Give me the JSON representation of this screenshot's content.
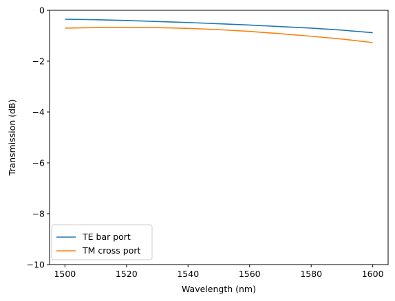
{
  "chart_data": {
    "type": "line",
    "xlabel": "Wavelength (nm)",
    "ylabel": "Transmission (dB)",
    "xlim": [
      1495,
      1605
    ],
    "ylim": [
      -10,
      0
    ],
    "xticks": [
      1500,
      1520,
      1540,
      1560,
      1580,
      1600
    ],
    "xtick_labels": [
      "1500",
      "1520",
      "1540",
      "1560",
      "1580",
      "1600"
    ],
    "yticks": [
      -10,
      -8,
      -6,
      -4,
      -2,
      0
    ],
    "ytick_labels": [
      "−10",
      "−8",
      "−6",
      "−4",
      "−2",
      "0"
    ],
    "grid": false,
    "legend_position": "lower-left",
    "series": [
      {
        "name": "TE bar port",
        "color": "#1f77b4",
        "x": [
          1500,
          1510,
          1520,
          1530,
          1540,
          1550,
          1560,
          1570,
          1580,
          1590,
          1600
        ],
        "y": [
          -0.35,
          -0.37,
          -0.4,
          -0.44,
          -0.48,
          -0.53,
          -0.58,
          -0.64,
          -0.7,
          -0.78,
          -0.88
        ]
      },
      {
        "name": "TM cross port",
        "color": "#ff7f0e",
        "x": [
          1500,
          1510,
          1520,
          1530,
          1540,
          1550,
          1560,
          1570,
          1580,
          1590,
          1600
        ],
        "y": [
          -0.7,
          -0.68,
          -0.67,
          -0.68,
          -0.71,
          -0.76,
          -0.83,
          -0.92,
          -1.02,
          -1.13,
          -1.27
        ]
      }
    ]
  }
}
